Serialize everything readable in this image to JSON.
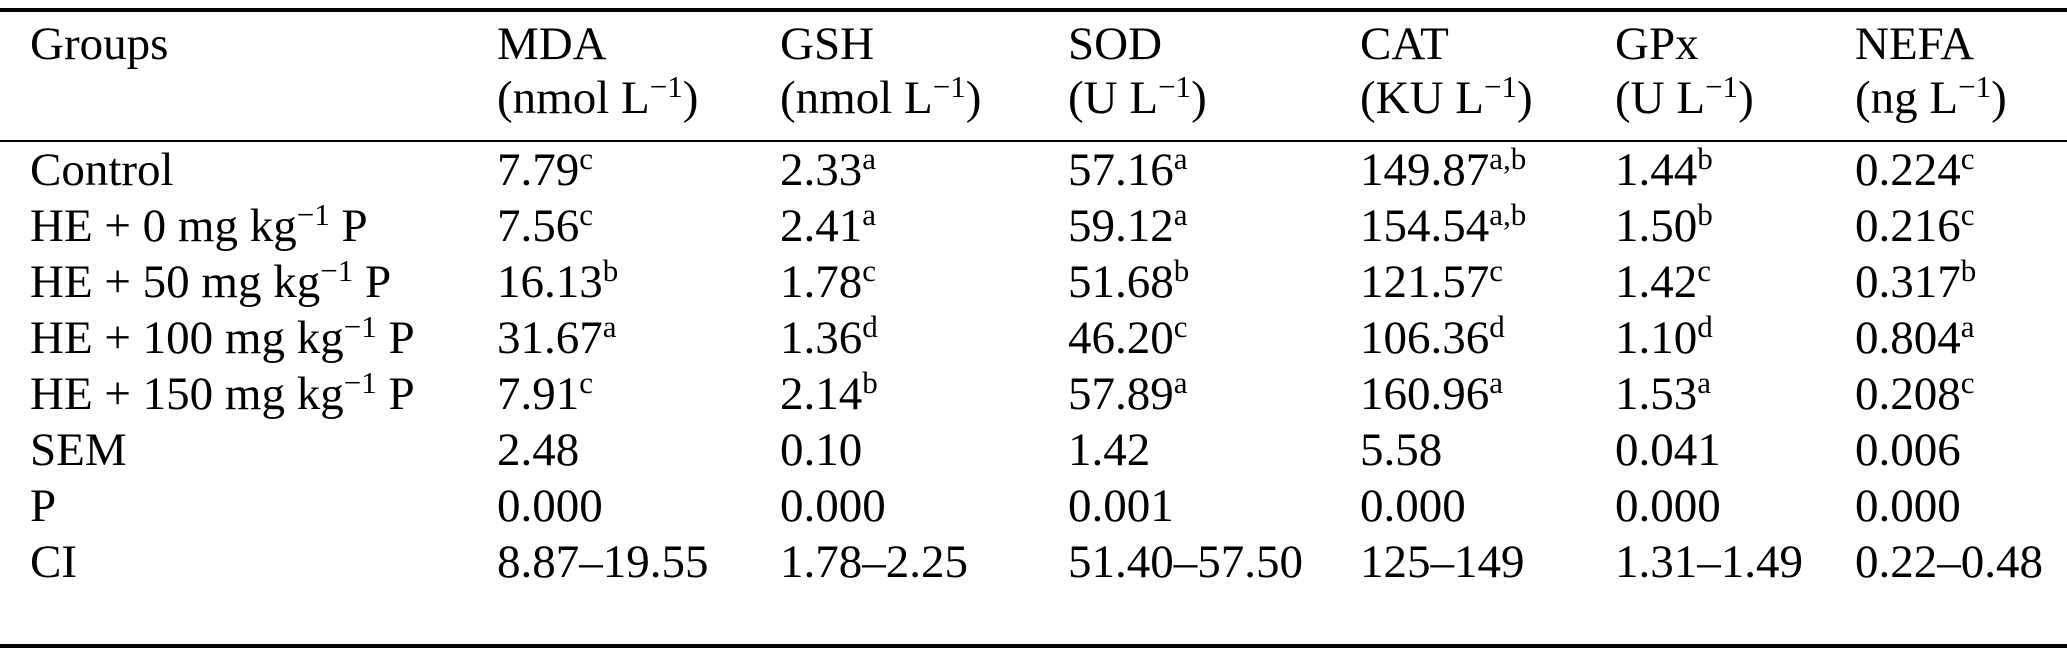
{
  "page": {
    "background_color": "#ffffff",
    "text_color": "#000000",
    "rule_color": "#000000"
  },
  "table": {
    "columns": [
      {
        "name": "Groups",
        "unit": ""
      },
      {
        "name": "MDA",
        "unit": "(nmol L^{−1})"
      },
      {
        "name": "GSH",
        "unit": "(nmol L^{−1})"
      },
      {
        "name": "SOD",
        "unit": "(U L^{−1})"
      },
      {
        "name": "CAT",
        "unit": "(KU L^{−1})"
      },
      {
        "name": "GPx",
        "unit": "(U L^{−1})"
      },
      {
        "name": "NEFA",
        "unit": "(ng L^{−1})"
      }
    ],
    "rows": [
      {
        "group": "Control",
        "cells": [
          "7.79^{c}",
          "2.33^{a}",
          "57.16^{a}",
          "149.87^{a,b}",
          "1.44^{b}",
          "0.224^{c}"
        ]
      },
      {
        "group": "HE + 0 mg kg^{−1} P",
        "cells": [
          "7.56^{c}",
          "2.41^{a}",
          "59.12^{a}",
          "154.54^{a,b}",
          "1.50^{b}",
          "0.216^{c}"
        ]
      },
      {
        "group": "HE + 50 mg kg^{−1} P",
        "cells": [
          "16.13^{b}",
          "1.78^{c}",
          "51.68^{b}",
          "121.57^{c}",
          "1.42^{c}",
          "0.317^{b}"
        ]
      },
      {
        "group": "HE + 100 mg kg^{−1} P",
        "cells": [
          "31.67^{a}",
          "1.36^{d}",
          "46.20^{c}",
          "106.36^{d}",
          "1.10^{d}",
          "0.804^{a}"
        ]
      },
      {
        "group": "HE + 150 mg kg^{−1} P",
        "cells": [
          "7.91^{c}",
          "2.14^{b}",
          "57.89^{a}",
          "160.96^{a}",
          "1.53^{a}",
          "0.208^{c}"
        ]
      },
      {
        "group": "SEM",
        "cells": [
          "2.48",
          "0.10",
          "1.42",
          "5.58",
          "0.041",
          "0.006"
        ]
      },
      {
        "group": "P",
        "cells": [
          "0.000",
          "0.000",
          "0.001",
          "0.000",
          "0.000",
          "0.000"
        ]
      },
      {
        "group": "CI",
        "cells": [
          "8.87–19.55",
          "1.78–2.25",
          "51.40–57.50",
          "125–149",
          "1.31–1.49",
          "0.22–0.48"
        ]
      }
    ]
  }
}
